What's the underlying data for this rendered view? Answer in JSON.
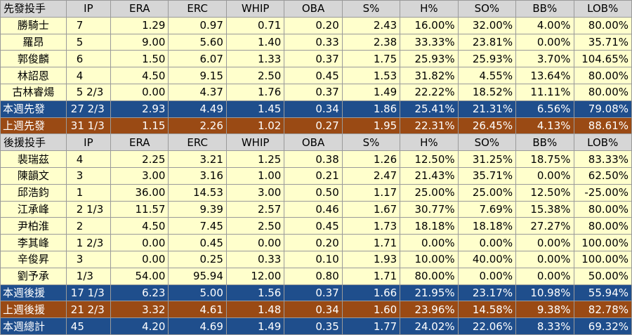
{
  "columns": [
    "IP",
    "ERA",
    "ERC",
    "WHIP",
    "OBA",
    "S%",
    "H%",
    "SO%",
    "BB%",
    "LOB%"
  ],
  "starters": {
    "header": "先發投手",
    "rows": [
      {
        "name": "勝騎士",
        "values": [
          "7",
          "1.29",
          "0.97",
          "0.71",
          "0.20",
          "2.43",
          "16.00%",
          "32.00%",
          "4.00%",
          "80.00%"
        ]
      },
      {
        "name": "羅昂",
        "values": [
          "5",
          "9.00",
          "5.60",
          "1.40",
          "0.33",
          "2.38",
          "33.33%",
          "23.81%",
          "0.00%",
          "35.71%"
        ]
      },
      {
        "name": "郭俊麟",
        "values": [
          "6",
          "1.50",
          "6.07",
          "1.33",
          "0.37",
          "1.75",
          "25.93%",
          "25.93%",
          "3.70%",
          "104.65%"
        ]
      },
      {
        "name": "林詔恩",
        "values": [
          "4",
          "4.50",
          "9.15",
          "2.50",
          "0.45",
          "1.53",
          "31.82%",
          "4.55%",
          "13.64%",
          "80.00%"
        ]
      },
      {
        "name": "古林睿煬",
        "values": [
          "5 2/3",
          "0.00",
          "4.37",
          "1.76",
          "0.37",
          "1.49",
          "22.22%",
          "18.52%",
          "11.11%",
          "80.00%"
        ]
      }
    ],
    "this_week": {
      "name": "本週先發",
      "values": [
        "27 2/3",
        "2.93",
        "4.49",
        "1.45",
        "0.34",
        "1.86",
        "25.41%",
        "21.31%",
        "6.56%",
        "79.08%"
      ]
    },
    "last_week": {
      "name": "上週先發",
      "values": [
        "31 1/3",
        "1.15",
        "2.26",
        "1.02",
        "0.27",
        "1.95",
        "22.31%",
        "26.45%",
        "4.13%",
        "88.61%"
      ]
    }
  },
  "relievers": {
    "header": "後援投手",
    "rows": [
      {
        "name": "裴瑞茲",
        "values": [
          "4",
          "2.25",
          "3.21",
          "1.25",
          "0.38",
          "1.26",
          "12.50%",
          "31.25%",
          "18.75%",
          "83.33%"
        ]
      },
      {
        "name": "陳韻文",
        "values": [
          "3",
          "3.00",
          "3.16",
          "1.00",
          "0.21",
          "2.47",
          "21.43%",
          "35.71%",
          "0.00%",
          "62.50%"
        ]
      },
      {
        "name": "邱浩鈞",
        "values": [
          "1",
          "36.00",
          "14.53",
          "3.00",
          "0.50",
          "1.17",
          "25.00%",
          "25.00%",
          "12.50%",
          "-25.00%"
        ]
      },
      {
        "name": "江承峰",
        "values": [
          "2 1/3",
          "11.57",
          "9.39",
          "2.57",
          "0.46",
          "1.67",
          "30.77%",
          "7.69%",
          "15.38%",
          "80.00%"
        ]
      },
      {
        "name": "尹柏淮",
        "values": [
          "2",
          "4.50",
          "7.45",
          "2.50",
          "0.45",
          "1.73",
          "18.18%",
          "18.18%",
          "27.27%",
          "80.00%"
        ]
      },
      {
        "name": "李其峰",
        "values": [
          "1 2/3",
          "0.00",
          "0.45",
          "0.00",
          "0.20",
          "1.71",
          "0.00%",
          "0.00%",
          "0.00%",
          "100.00%"
        ]
      },
      {
        "name": "辛俊昇",
        "values": [
          "3",
          "0.00",
          "0.25",
          "0.33",
          "0.10",
          "1.93",
          "10.00%",
          "40.00%",
          "0.00%",
          "100.00%"
        ]
      },
      {
        "name": "劉予承",
        "values": [
          "1/3",
          "54.00",
          "95.94",
          "12.00",
          "0.80",
          "1.71",
          "80.00%",
          "0.00%",
          "0.00%",
          "50.00%"
        ]
      }
    ],
    "this_week": {
      "name": "本週後援",
      "values": [
        "17 1/3",
        "6.23",
        "5.00",
        "1.56",
        "0.37",
        "1.66",
        "21.95%",
        "23.17%",
        "10.98%",
        "55.94%"
      ]
    },
    "last_week": {
      "name": "上週後援",
      "values": [
        "21 2/3",
        "3.32",
        "4.61",
        "1.48",
        "0.34",
        "1.60",
        "23.96%",
        "14.58%",
        "9.38%",
        "82.78%"
      ]
    }
  },
  "total": {
    "name": "本週總計",
    "values": [
      "45",
      "4.20",
      "4.69",
      "1.49",
      "0.35",
      "1.77",
      "24.02%",
      "22.06%",
      "8.33%",
      "69.32%"
    ]
  },
  "colors": {
    "header_bg": "#d6d6d6",
    "row_bg": "#ffffcc",
    "blue_bg": "#1f4e8c",
    "brown_bg": "#9a4a14"
  }
}
